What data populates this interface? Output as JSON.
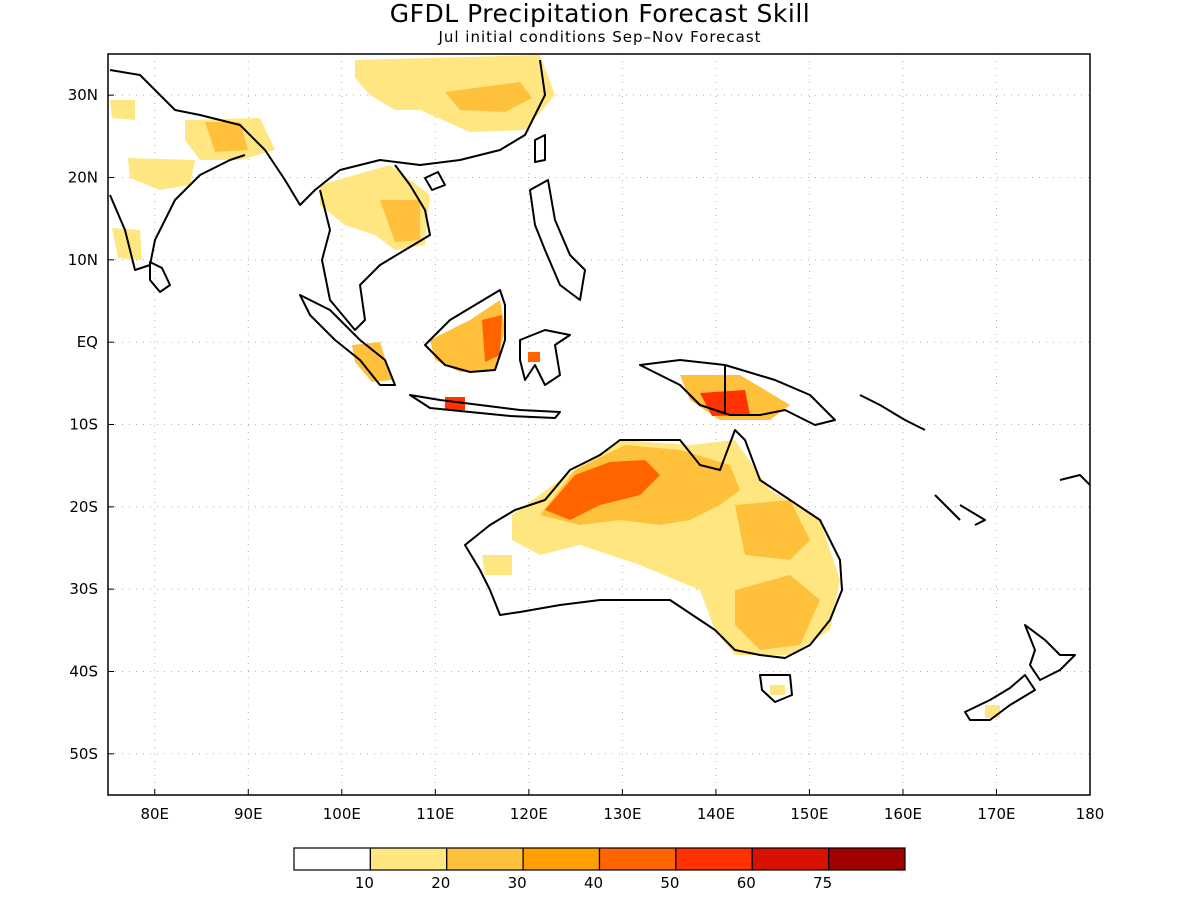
{
  "title": "GFDL Precipitation Forecast Skill",
  "subtitle": "Jul initial conditions   Sep–Nov Forecast",
  "map": {
    "lon_range": [
      75,
      180
    ],
    "lat_range": [
      -55,
      35
    ],
    "lon_ticks": [
      {
        "value": 80,
        "label": "80E"
      },
      {
        "value": 90,
        "label": "90E"
      },
      {
        "value": 100,
        "label": "100E"
      },
      {
        "value": 110,
        "label": "110E"
      },
      {
        "value": 120,
        "label": "120E"
      },
      {
        "value": 130,
        "label": "130E"
      },
      {
        "value": 140,
        "label": "140E"
      },
      {
        "value": 150,
        "label": "150E"
      },
      {
        "value": 160,
        "label": "160E"
      },
      {
        "value": 170,
        "label": "170E"
      },
      {
        "value": 180,
        "label": "180"
      }
    ],
    "lat_ticks": [
      {
        "value": 30,
        "label": "30N"
      },
      {
        "value": 20,
        "label": "20N"
      },
      {
        "value": 10,
        "label": "10N"
      },
      {
        "value": 0,
        "label": "EQ"
      },
      {
        "value": -10,
        "label": "10S"
      },
      {
        "value": -20,
        "label": "20S"
      },
      {
        "value": -30,
        "label": "30S"
      },
      {
        "value": -40,
        "label": "40S"
      },
      {
        "value": -50,
        "label": "50S"
      }
    ],
    "grid": true
  },
  "colorbar": {
    "colors": [
      "#ffffff",
      "#ffe680",
      "#ffc03c",
      "#ffa000",
      "#ff6400",
      "#ff3200",
      "#d81200",
      "#a00000"
    ],
    "labels": [
      "10",
      "20",
      "30",
      "40",
      "50",
      "60",
      "75"
    ]
  }
}
